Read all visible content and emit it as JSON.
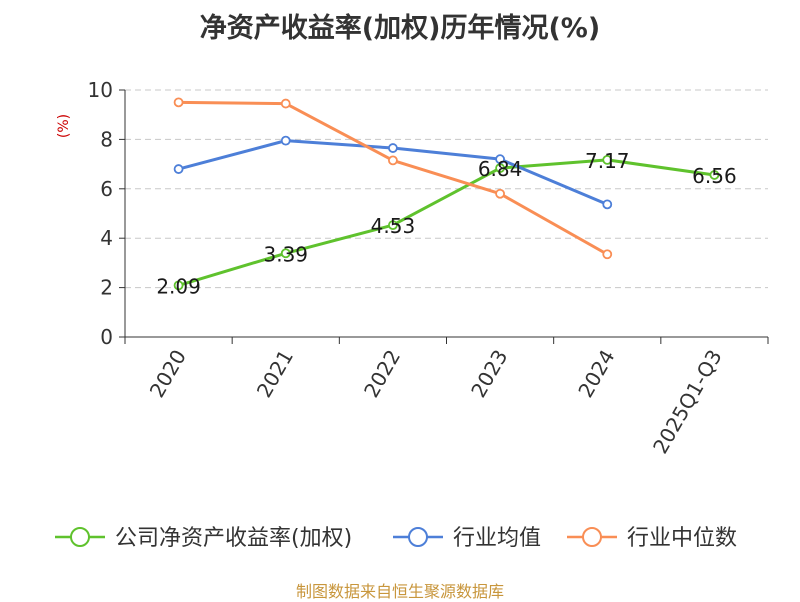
{
  "chart_data": {
    "type": "line",
    "title": "净资产收益率(加权)历年情况(%)",
    "ylabel": "(%)",
    "xlabel": "",
    "categories": [
      "2020",
      "2021",
      "2022",
      "2023",
      "2024",
      "2025Q1-Q3"
    ],
    "ylim": [
      0,
      10
    ],
    "yticks": [
      0,
      2,
      4,
      6,
      8,
      10
    ],
    "grid": true,
    "legend_position": "bottom",
    "series": [
      {
        "name": "公司净资产收益率(加权)",
        "color": "#5fc22d",
        "values": [
          2.09,
          3.39,
          4.53,
          6.84,
          7.17,
          6.56
        ],
        "labeled": true
      },
      {
        "name": "行业均值",
        "color": "#4d7fd8",
        "values": [
          6.8,
          7.95,
          7.65,
          7.2,
          5.37,
          null
        ],
        "labeled": false
      },
      {
        "name": "行业中位数",
        "color": "#f98e55",
        "values": [
          9.5,
          9.45,
          7.15,
          5.8,
          3.35,
          null
        ],
        "labeled": false
      }
    ]
  },
  "source_note": "制图数据来自恒生聚源数据库",
  "source_color": "#c8963c",
  "ylabel_color": "#cc0000"
}
